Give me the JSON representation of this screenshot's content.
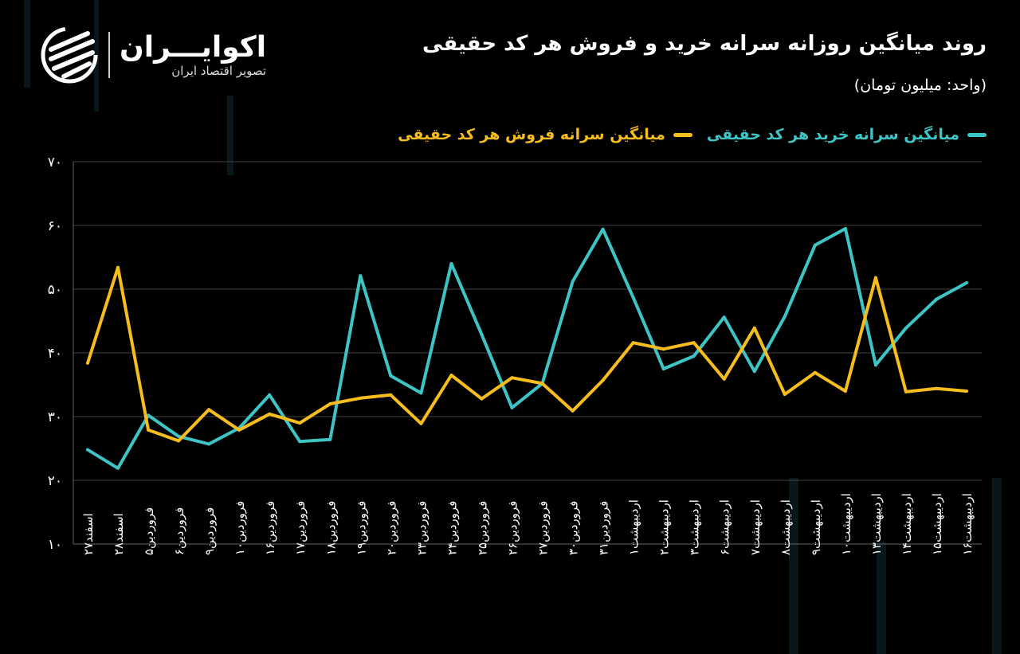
{
  "header": {
    "title": "روند میانگین روزانه سرانه خرید و فروش هر کد حقیقی",
    "unit": "(واحد: میلیون تومان)"
  },
  "logo": {
    "name": "اکوایـــران",
    "tagline": "تصویر اقتصاد ایران"
  },
  "colors": {
    "buy": "#3fc4c6",
    "sell": "#f5bd1e",
    "grid": "#444444",
    "bg": "#000000"
  },
  "chart_data": {
    "type": "line",
    "title": "روند میانگین روزانه سرانه خرید و فروش هر کد حقیقی",
    "ylabel": "(واحد: میلیون تومان)",
    "ylim": [
      10,
      70
    ],
    "yticks": [
      10,
      20,
      30,
      40,
      50,
      60,
      70
    ],
    "ytick_labels": [
      "۱۰",
      "۲۰",
      "۳۰",
      "۴۰",
      "۵۰",
      "۶۰",
      "۷۰"
    ],
    "grid": true,
    "legend_position": "top-right",
    "categories": [
      "اسفند۲۷",
      "اسفند۲۸",
      "فروردین۵",
      "فروردین۶",
      "فروردین۹",
      "فروردین۱۰",
      "فروردین۱۶",
      "فروردین۱۷",
      "فروردین۱۸",
      "فروردین۱۹",
      "فروردین۲۰",
      "فروردین۲۳",
      "فروردین۲۴",
      "فروردین۲۵",
      "فروردین۲۶",
      "فروردین۲۷",
      "فروردین۳۰",
      "فروردین۳۱",
      "اردیبهشت۱",
      "اردیبهشت۲",
      "اردیبهشت۳",
      "اردیبهشت۶",
      "اردیبهشت۷",
      "اردیبهشت۸",
      "اردیبهشت۹",
      "اردیبهشت۱۰",
      "اردیبهشت۱۳",
      "اردیبهشت۱۴",
      "اردیبهشت۱۵",
      "اردیبهشت۱۶"
    ],
    "series": [
      {
        "name": "میانگین سرانه خرید هر کد حقیقی",
        "color": "#3fc4c6",
        "values": [
          24.8,
          21.9,
          30.2,
          26.9,
          25.7,
          28.2,
          33.4,
          26.1,
          26.4,
          52.1,
          36.4,
          33.7,
          54.0,
          42.9,
          31.4,
          35.2,
          51.2,
          59.4,
          48.7,
          37.5,
          39.5,
          45.6,
          37.1,
          45.7,
          56.9,
          59.5,
          38.1,
          43.9,
          48.4,
          51.0
        ]
      },
      {
        "name": "میانگین سرانه فروش هر کد حقیقی",
        "color": "#f5bd1e",
        "values": [
          38.4,
          53.4,
          27.9,
          26.2,
          31.1,
          27.9,
          30.4,
          29.0,
          32.0,
          32.9,
          33.4,
          28.9,
          36.5,
          32.8,
          36.1,
          35.2,
          30.9,
          35.7,
          41.6,
          40.6,
          41.6,
          35.9,
          43.9,
          33.5,
          36.9,
          34.0,
          51.8,
          33.9,
          34.4,
          34.0
        ]
      }
    ]
  }
}
